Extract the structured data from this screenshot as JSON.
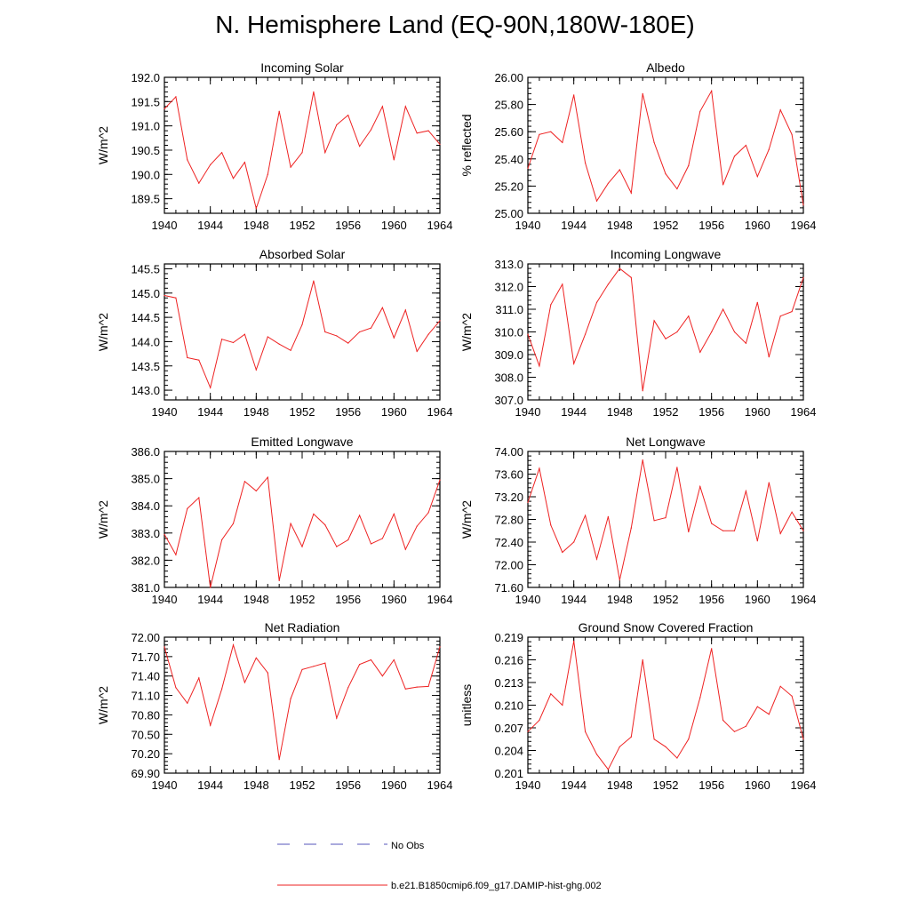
{
  "page_title": "N. Hemisphere Land (EQ-90N,180W-180E)",
  "legend": [
    {
      "label": "No Obs",
      "color": "#5555bb",
      "style": "dashed"
    },
    {
      "label": "b.e21.B1850cmip6.f09_g17.DAMIP-hist-ghg.002",
      "color": "#ee2222",
      "style": "solid"
    }
  ],
  "series_color": "#ee2222",
  "chart_data": [
    {
      "type": "line",
      "title": "Incoming Solar",
      "ylabel": "W/m^2",
      "xlim": [
        1940,
        1964
      ],
      "ylim": [
        189.2,
        192.0
      ],
      "xticks": [
        "1940",
        "1944",
        "1948",
        "1952",
        "1956",
        "1960",
        "1964"
      ],
      "yticks": [
        "189.5",
        "190.0",
        "190.5",
        "191.0",
        "191.5",
        "192.0"
      ],
      "x": [
        1940,
        1941,
        1942,
        1943,
        1944,
        1945,
        1946,
        1947,
        1948,
        1949,
        1950,
        1951,
        1952,
        1953,
        1954,
        1955,
        1956,
        1957,
        1958,
        1959,
        1960,
        1961,
        1962,
        1963,
        1964
      ],
      "values": [
        191.35,
        191.6,
        190.3,
        189.82,
        190.2,
        190.45,
        189.92,
        190.25,
        189.3,
        190.0,
        191.3,
        190.15,
        190.45,
        191.7,
        190.45,
        191.02,
        191.22,
        190.58,
        190.92,
        191.4,
        190.3,
        191.4,
        190.85,
        190.9,
        190.62
      ]
    },
    {
      "type": "line",
      "title": "Albedo",
      "ylabel": "% reflected",
      "xlim": [
        1940,
        1964
      ],
      "ylim": [
        25.0,
        26.0
      ],
      "xticks": [
        "1940",
        "1944",
        "1948",
        "1952",
        "1956",
        "1960",
        "1964"
      ],
      "yticks": [
        "25.00",
        "25.20",
        "25.40",
        "25.60",
        "25.80",
        "26.00"
      ],
      "x": [
        1940,
        1941,
        1942,
        1943,
        1944,
        1945,
        1946,
        1947,
        1948,
        1949,
        1950,
        1951,
        1952,
        1953,
        1954,
        1955,
        1956,
        1957,
        1958,
        1959,
        1960,
        1961,
        1962,
        1963,
        1964
      ],
      "values": [
        25.33,
        25.58,
        25.6,
        25.52,
        25.87,
        25.37,
        25.09,
        25.22,
        25.32,
        25.15,
        25.88,
        25.52,
        25.29,
        25.18,
        25.35,
        25.75,
        25.9,
        25.21,
        25.42,
        25.5,
        25.27,
        25.47,
        25.76,
        25.58,
        25.06
      ]
    },
    {
      "type": "line",
      "title": "Absorbed Solar",
      "ylabel": "W/m^2",
      "xlim": [
        1940,
        1964
      ],
      "ylim": [
        142.8,
        145.6
      ],
      "xticks": [
        "1940",
        "1944",
        "1948",
        "1952",
        "1956",
        "1960",
        "1964"
      ],
      "yticks": [
        "143.0",
        "143.5",
        "144.0",
        "144.5",
        "145.0",
        "145.5"
      ],
      "x": [
        1940,
        1941,
        1942,
        1943,
        1944,
        1945,
        1946,
        1947,
        1948,
        1949,
        1950,
        1951,
        1952,
        1953,
        1954,
        1955,
        1956,
        1957,
        1958,
        1959,
        1960,
        1961,
        1962,
        1963,
        1964
      ],
      "values": [
        144.95,
        144.9,
        143.67,
        143.62,
        143.05,
        144.05,
        143.98,
        144.15,
        143.42,
        144.1,
        143.95,
        143.82,
        144.35,
        145.25,
        144.2,
        144.12,
        143.97,
        144.2,
        144.28,
        144.7,
        144.08,
        144.65,
        143.8,
        144.15,
        144.43
      ]
    },
    {
      "type": "line",
      "title": "Incoming Longwave",
      "ylabel": "W/m^2",
      "xlim": [
        1940,
        1964
      ],
      "ylim": [
        307.0,
        313.0
      ],
      "xticks": [
        "1940",
        "1944",
        "1948",
        "1952",
        "1956",
        "1960",
        "1964"
      ],
      "yticks": [
        "307.0",
        "308.0",
        "309.0",
        "310.0",
        "311.0",
        "312.0",
        "313.0"
      ],
      "x": [
        1940,
        1941,
        1942,
        1943,
        1944,
        1945,
        1946,
        1947,
        1948,
        1949,
        1950,
        1951,
        1952,
        1953,
        1954,
        1955,
        1956,
        1957,
        1958,
        1959,
        1960,
        1961,
        1962,
        1963,
        1964
      ],
      "values": [
        309.9,
        308.5,
        311.2,
        312.1,
        308.6,
        309.9,
        311.3,
        312.1,
        312.8,
        312.4,
        307.4,
        310.5,
        309.7,
        310.0,
        310.7,
        309.1,
        310.0,
        311.0,
        310.0,
        309.5,
        311.3,
        308.9,
        310.7,
        310.9,
        312.4
      ]
    },
    {
      "type": "line",
      "title": "Emitted Longwave",
      "ylabel": "W/m^2",
      "xlim": [
        1940,
        1964
      ],
      "ylim": [
        381.0,
        386.0
      ],
      "xticks": [
        "1940",
        "1944",
        "1948",
        "1952",
        "1956",
        "1960",
        "1964"
      ],
      "yticks": [
        "381.0",
        "382.0",
        "383.0",
        "384.0",
        "385.0",
        "386.0"
      ],
      "x": [
        1940,
        1941,
        1942,
        1943,
        1944,
        1945,
        1946,
        1947,
        1948,
        1949,
        1950,
        1951,
        1952,
        1953,
        1954,
        1955,
        1956,
        1957,
        1958,
        1959,
        1960,
        1961,
        1962,
        1963,
        1964
      ],
      "values": [
        382.95,
        382.2,
        383.9,
        384.3,
        381.0,
        382.75,
        383.35,
        384.9,
        384.55,
        385.05,
        381.25,
        383.35,
        382.5,
        383.7,
        383.3,
        382.5,
        382.75,
        383.65,
        382.6,
        382.8,
        383.7,
        382.4,
        383.25,
        383.75,
        384.95
      ]
    },
    {
      "type": "line",
      "title": "Net Longwave",
      "ylabel": "W/m^2",
      "xlim": [
        1940,
        1964
      ],
      "ylim": [
        71.6,
        74.0
      ],
      "xticks": [
        "1940",
        "1944",
        "1948",
        "1952",
        "1956",
        "1960",
        "1964"
      ],
      "yticks": [
        "71.60",
        "72.00",
        "72.40",
        "72.80",
        "73.20",
        "73.60",
        "74.00"
      ],
      "x": [
        1940,
        1941,
        1942,
        1943,
        1944,
        1945,
        1946,
        1947,
        1948,
        1949,
        1950,
        1951,
        1952,
        1953,
        1954,
        1955,
        1956,
        1957,
        1958,
        1959,
        1960,
        1961,
        1962,
        1963,
        1964
      ],
      "values": [
        73.1,
        73.7,
        72.7,
        72.22,
        72.4,
        72.87,
        72.1,
        72.85,
        71.73,
        72.65,
        73.85,
        72.78,
        72.83,
        73.72,
        72.58,
        73.38,
        72.73,
        72.6,
        72.6,
        73.3,
        72.42,
        73.45,
        72.55,
        72.93,
        72.6
      ]
    },
    {
      "type": "line",
      "title": "Net Radiation",
      "ylabel": "W/m^2",
      "xlim": [
        1940,
        1964
      ],
      "ylim": [
        69.9,
        72.0
      ],
      "xticks": [
        "1940",
        "1944",
        "1948",
        "1952",
        "1956",
        "1960",
        "1964"
      ],
      "yticks": [
        "69.90",
        "70.20",
        "70.50",
        "70.80",
        "71.10",
        "71.40",
        "71.70",
        "72.00"
      ],
      "x": [
        1940,
        1941,
        1942,
        1943,
        1944,
        1945,
        1946,
        1947,
        1948,
        1949,
        1950,
        1951,
        1952,
        1953,
        1954,
        1955,
        1956,
        1957,
        1958,
        1959,
        1960,
        1961,
        1962,
        1963,
        1964
      ],
      "values": [
        71.85,
        71.22,
        70.98,
        71.37,
        70.64,
        71.2,
        71.88,
        71.3,
        71.68,
        71.45,
        70.11,
        71.05,
        71.5,
        71.55,
        71.6,
        70.75,
        71.22,
        71.58,
        71.65,
        71.4,
        71.65,
        71.2,
        71.23,
        71.24,
        71.85
      ]
    },
    {
      "type": "line",
      "title": "Ground Snow Covered Fraction",
      "ylabel": "unitless",
      "xlim": [
        1940,
        1964
      ],
      "ylim": [
        0.201,
        0.219
      ],
      "xticks": [
        "1940",
        "1944",
        "1948",
        "1952",
        "1956",
        "1960",
        "1964"
      ],
      "yticks": [
        "0.201",
        "0.204",
        "0.207",
        "0.210",
        "0.213",
        "0.216",
        "0.219"
      ],
      "x": [
        1940,
        1941,
        1942,
        1943,
        1944,
        1945,
        1946,
        1947,
        1948,
        1949,
        1950,
        1951,
        1952,
        1953,
        1954,
        1955,
        1956,
        1957,
        1958,
        1959,
        1960,
        1961,
        1962,
        1963,
        1964
      ],
      "values": [
        0.2065,
        0.208,
        0.2115,
        0.21,
        0.2185,
        0.2065,
        0.2035,
        0.2015,
        0.2045,
        0.2058,
        0.216,
        0.2055,
        0.2045,
        0.203,
        0.2055,
        0.211,
        0.2175,
        0.208,
        0.2065,
        0.2072,
        0.2098,
        0.2088,
        0.2125,
        0.2112,
        0.2055
      ]
    }
  ]
}
